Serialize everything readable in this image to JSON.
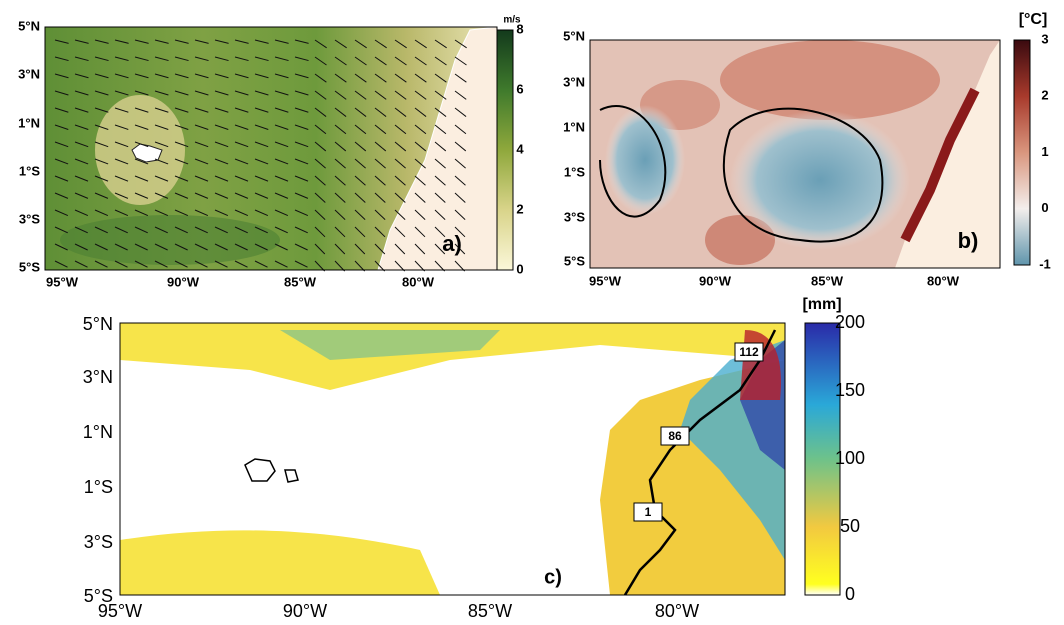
{
  "panels": [
    {
      "label": "a)",
      "unit": "m/s",
      "colorbar_ticks": [
        8,
        6,
        4,
        2,
        0
      ],
      "lat_ticks": [
        "5°N",
        "3°N",
        "1°N",
        "1°S",
        "3°S",
        "5°S"
      ],
      "lon_ticks": [
        "95°W",
        "90°W",
        "85°W",
        "80°W"
      ]
    },
    {
      "label": "b)",
      "unit": "[°C]",
      "colorbar_ticks": [
        3,
        2,
        1,
        0,
        -1
      ],
      "lat_ticks": [
        "5°N",
        "3°N",
        "1°N",
        "1°S",
        "3°S",
        "5°S"
      ],
      "lon_ticks": [
        "95°W",
        "90°W",
        "85°W",
        "80°W"
      ]
    },
    {
      "label": "c)",
      "unit": "[mm]",
      "colorbar_ticks": [
        200,
        150,
        100,
        50,
        0
      ],
      "lat_ticks": [
        "5°N",
        "3°N",
        "1°N",
        "1°S",
        "3°S",
        "5°S"
      ],
      "lon_ticks": [
        "95°W",
        "90°W",
        "85°W",
        "80°W"
      ],
      "station_labels": [
        "112",
        "86",
        "1"
      ]
    }
  ]
}
